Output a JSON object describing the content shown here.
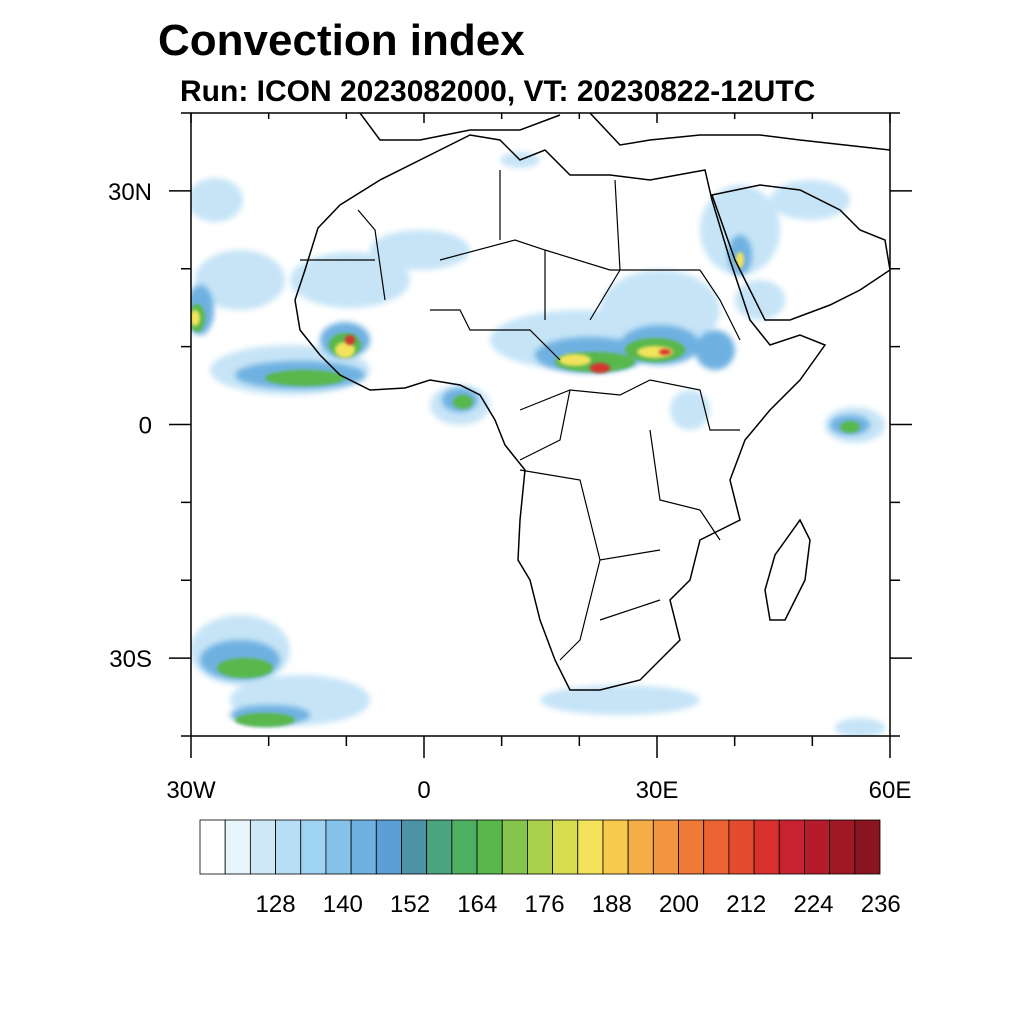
{
  "title": "Convection index",
  "subtitle": "Run: ICON 2023082000,  VT: 20230822-12UTC",
  "map": {
    "region": "Africa",
    "lon_range": [
      -30,
      60
    ],
    "lat_range": [
      -40,
      40
    ],
    "lon_ticks": [
      {
        "value": -30,
        "label": "30W"
      },
      {
        "value": 0,
        "label": "0"
      },
      {
        "value": 30,
        "label": "30E"
      },
      {
        "value": 60,
        "label": "60E"
      }
    ],
    "lat_ticks": [
      {
        "value": 30,
        "label": "30N"
      },
      {
        "value": 0,
        "label": "0"
      },
      {
        "value": -30,
        "label": "30S"
      }
    ]
  },
  "colorbar": {
    "labels": [
      "128",
      "140",
      "152",
      "164",
      "176",
      "188",
      "200",
      "212",
      "224",
      "236"
    ],
    "colors": [
      "#ffffff",
      "#e8f4fb",
      "#cfe8f7",
      "#b8def5",
      "#9fd3f2",
      "#85c2ea",
      "#6eb1e1",
      "#5b9fd4",
      "#4d93a8",
      "#4aa57f",
      "#4caf62",
      "#58b84c",
      "#85c44d",
      "#aad04c",
      "#d6de4f",
      "#f2e35b",
      "#f7c94d",
      "#f5ad45",
      "#f39540",
      "#ef7a37",
      "#eb6332",
      "#e34b2f",
      "#d9302e",
      "#c82130",
      "#b51b2a",
      "#a01823",
      "#8a141f"
    ]
  },
  "legend_colors": {
    "light": "#b8def5",
    "mid": "#6eb1e1",
    "green": "#58b84c",
    "yellow": "#f2e35b",
    "orange": "#f39540",
    "red": "#d9302e"
  }
}
